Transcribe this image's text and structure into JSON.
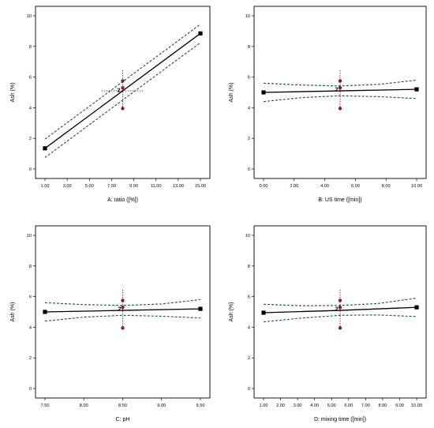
{
  "chart_data": [
    {
      "type": "line",
      "xlabel": "A: ratio ([%])",
      "ylabel": "Ash (%)",
      "xlim": [
        1,
        15
      ],
      "ylim": [
        0,
        10
      ],
      "xticks": [
        "1.00",
        "3.00",
        "5.00",
        "7.00",
        "9.00",
        "11.00",
        "13.00",
        "15.00"
      ],
      "yticks": [
        "0",
        "2",
        "4",
        "6",
        "8",
        "10"
      ],
      "series": [
        {
          "role": "prediction",
          "x": [
            1,
            15
          ],
          "y": [
            1.35,
            8.85
          ]
        },
        {
          "role": "ci_upper",
          "x": [
            1,
            15
          ],
          "y": [
            1.95,
            9.45
          ]
        },
        {
          "role": "ci_lower",
          "x": [
            1,
            15
          ],
          "y": [
            0.75,
            8.25
          ]
        }
      ],
      "end_points": [
        {
          "x": 1,
          "y": 1.35
        },
        {
          "x": 15,
          "y": 8.85
        }
      ],
      "design_points": [
        {
          "x": 8,
          "y": 5.75
        },
        {
          "x": 8,
          "y": 5.3
        },
        {
          "x": 8,
          "y": 3.95
        }
      ],
      "center_label": {
        "text": "2",
        "x": 7.65,
        "y": 5.15
      },
      "center_cross": {
        "x": 8,
        "y": 5.1,
        "x_from": 6.1,
        "x_to": 9.9,
        "y_from": 3.9,
        "y_to": 6.5
      }
    },
    {
      "type": "line",
      "xlabel": "B: US time ([min])",
      "ylabel": "Ash (%)",
      "xlim": [
        0,
        10
      ],
      "ylim": [
        0,
        10
      ],
      "xticks": [
        "0.00",
        "2.00",
        "4.00",
        "6.00",
        "8.00",
        "10.00"
      ],
      "yticks": [
        "0",
        "2",
        "4",
        "6",
        "8",
        "10"
      ],
      "series": [
        {
          "role": "prediction",
          "x": [
            0,
            5,
            10
          ],
          "y": [
            5.0,
            5.1,
            5.2
          ]
        },
        {
          "role": "ci_upper",
          "x": [
            0,
            2.5,
            5,
            7.5,
            10
          ],
          "y": [
            5.6,
            5.48,
            5.42,
            5.52,
            5.8
          ]
        },
        {
          "role": "ci_lower",
          "x": [
            0,
            2.5,
            5,
            7.5,
            10
          ],
          "y": [
            4.4,
            4.66,
            4.78,
            4.72,
            4.6
          ]
        }
      ],
      "end_points": [
        {
          "x": 0,
          "y": 5.0
        },
        {
          "x": 10,
          "y": 5.2
        }
      ],
      "design_points": [
        {
          "x": 5,
          "y": 5.75
        },
        {
          "x": 5,
          "y": 5.3
        },
        {
          "x": 5,
          "y": 3.95
        }
      ],
      "center_label": {
        "text": "2",
        "x": 4.78,
        "y": 5.2
      },
      "center_cross": {
        "x": 5,
        "y": 5.1,
        "x_from": 5,
        "x_to": 5,
        "y_from": 3.9,
        "y_to": 6.5
      }
    },
    {
      "type": "line",
      "xlabel": "C: pH",
      "ylabel": "Ash (%)",
      "xlim": [
        7.5,
        9.5
      ],
      "ylim": [
        0,
        10
      ],
      "xticks": [
        "7.50",
        "8.00",
        "8.50",
        "9.00",
        "9.50"
      ],
      "yticks": [
        "0",
        "2",
        "4",
        "6",
        "8",
        "10"
      ],
      "series": [
        {
          "role": "prediction",
          "x": [
            7.5,
            8.5,
            9.5
          ],
          "y": [
            5.0,
            5.1,
            5.2
          ]
        },
        {
          "role": "ci_upper",
          "x": [
            7.5,
            8.0,
            8.5,
            9.0,
            9.5
          ],
          "y": [
            5.6,
            5.48,
            5.42,
            5.52,
            5.8
          ]
        },
        {
          "role": "ci_lower",
          "x": [
            7.5,
            8.0,
            8.5,
            9.0,
            9.5
          ],
          "y": [
            4.4,
            4.66,
            4.78,
            4.72,
            4.6
          ]
        }
      ],
      "end_points": [
        {
          "x": 7.5,
          "y": 5.0
        },
        {
          "x": 9.5,
          "y": 5.2
        }
      ],
      "design_points": [
        {
          "x": 8.5,
          "y": 5.75
        },
        {
          "x": 8.5,
          "y": 5.3
        },
        {
          "x": 8.5,
          "y": 3.95
        }
      ],
      "center_label": {
        "text": "2",
        "x": 8.46,
        "y": 5.2
      },
      "center_cross": {
        "x": 8.5,
        "y": 5.1,
        "x_from": 8.5,
        "x_to": 8.5,
        "y_from": 3.9,
        "y_to": 6.5
      }
    },
    {
      "type": "line",
      "xlabel": "D: mixing time ([min])",
      "ylabel": "Ash (%)",
      "xlim": [
        1,
        10
      ],
      "ylim": [
        0,
        10
      ],
      "xticks": [
        "1.00",
        "2.00",
        "3.00",
        "4.00",
        "5.00",
        "6.00",
        "7.00",
        "8.00",
        "9.00",
        "10.00"
      ],
      "yticks": [
        "0",
        "2",
        "4",
        "6",
        "8",
        "10"
      ],
      "series": [
        {
          "role": "prediction",
          "x": [
            1,
            5.5,
            10
          ],
          "y": [
            4.95,
            5.1,
            5.3
          ]
        },
        {
          "role": "ci_upper",
          "x": [
            1,
            3.25,
            5.5,
            7.75,
            10
          ],
          "y": [
            5.5,
            5.4,
            5.42,
            5.55,
            5.9
          ]
        },
        {
          "role": "ci_lower",
          "x": [
            1,
            3.25,
            5.5,
            7.75,
            10
          ],
          "y": [
            4.35,
            4.6,
            4.78,
            4.8,
            4.7
          ]
        }
      ],
      "end_points": [
        {
          "x": 1,
          "y": 4.95
        },
        {
          "x": 10,
          "y": 5.3
        }
      ],
      "design_points": [
        {
          "x": 5.5,
          "y": 5.75
        },
        {
          "x": 5.5,
          "y": 5.3
        },
        {
          "x": 5.5,
          "y": 3.95
        }
      ],
      "center_label": {
        "text": "2",
        "x": 5.3,
        "y": 5.2
      },
      "center_cross": {
        "x": 5.5,
        "y": 5.1,
        "x_from": 5.5,
        "x_to": 5.5,
        "y_from": 3.9,
        "y_to": 6.5
      }
    }
  ],
  "colors": {
    "prediction": "#000000",
    "ci_band": "#1f4e4e",
    "design_point": "#8b1a2e",
    "cross": "#8b1a2e",
    "frame": "#000000"
  }
}
